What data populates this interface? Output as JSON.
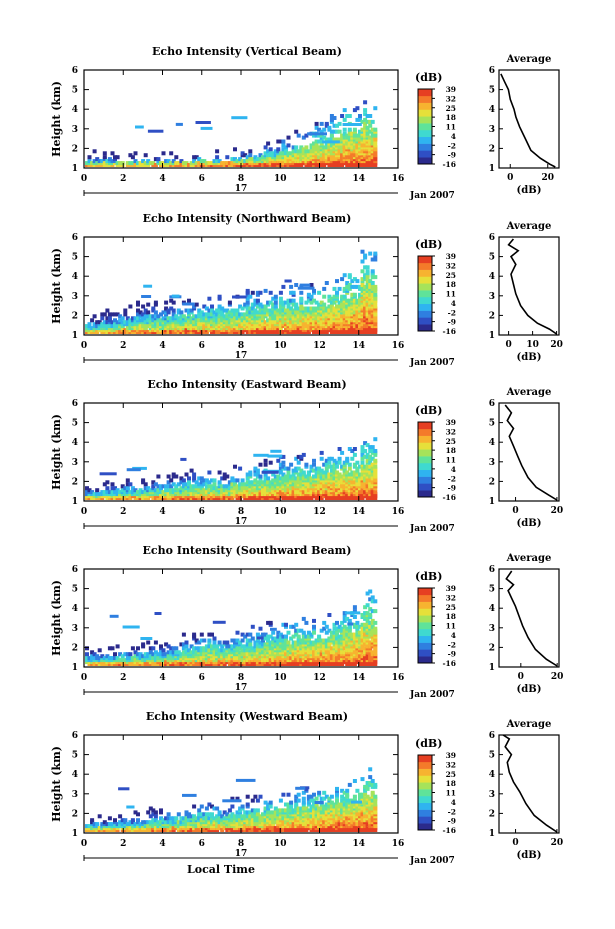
{
  "colors": {
    "palette": [
      "#2b2a8c",
      "#2f4fc4",
      "#2f7fe0",
      "#2fb4f0",
      "#3fd9d0",
      "#5fe39a",
      "#a6e35a",
      "#e6e03a",
      "#f7b330",
      "#f47a2a",
      "#e63f22"
    ],
    "line": "#000000",
    "background": "#ffffff"
  },
  "chart_data": [
    {
      "type": "heatmap",
      "title": "Echo Intensity (Vertical Beam)",
      "ylabel": "Height (km)",
      "xlabel": "",
      "date_label": "17",
      "month_label": "Jan 2007",
      "x_ticks": [
        "0",
        "2",
        "4",
        "6",
        "8",
        "10",
        "12",
        "14",
        "16"
      ],
      "xlim": [
        0,
        16
      ],
      "y_ticks": [
        "1",
        "2",
        "3",
        "4",
        "5",
        "6"
      ],
      "ylim": [
        1,
        6
      ],
      "colorbar": {
        "unit": "(dB)",
        "ticks": [
          "-16",
          "-9",
          "-2",
          "4",
          "11",
          "18",
          "25",
          "32",
          "39"
        ],
        "range": [
          -16,
          39
        ]
      },
      "top_heights": [
        1.4,
        1.4,
        1.3,
        1.3,
        1.3,
        1.3,
        1.3,
        1.4,
        1.4,
        1.5,
        1.6,
        1.9,
        2.1,
        2.4,
        2.8,
        3.2,
        3.6,
        3.9
      ],
      "average_profile": {
        "title": "Average",
        "xlabel": "(dB)",
        "x_ticks": [
          "0",
          "20"
        ],
        "xlim": [
          -6,
          26
        ],
        "y_ticks": [
          "1",
          "2",
          "3",
          "4",
          "5",
          "6"
        ],
        "points": [
          [
            24,
            1.05
          ],
          [
            21,
            1.2
          ],
          [
            16,
            1.5
          ],
          [
            11,
            1.9
          ],
          [
            8,
            2.5
          ],
          [
            5,
            3.1
          ],
          [
            3,
            3.6
          ],
          [
            2,
            4.0
          ],
          [
            0,
            4.5
          ],
          [
            -1,
            5.0
          ],
          [
            -3,
            5.4
          ],
          [
            -5,
            5.8
          ]
        ]
      }
    },
    {
      "type": "heatmap",
      "title": "Echo Intensity (Northward Beam)",
      "ylabel": "Height (km)",
      "xlabel": "",
      "date_label": "17",
      "month_label": "Jan 2007",
      "x_ticks": [
        "0",
        "2",
        "4",
        "6",
        "8",
        "10",
        "12",
        "14",
        "16"
      ],
      "xlim": [
        0,
        16
      ],
      "y_ticks": [
        "1",
        "2",
        "3",
        "4",
        "5",
        "6"
      ],
      "ylim": [
        1,
        6
      ],
      "colorbar": {
        "unit": "(dB)",
        "ticks": [
          "-16",
          "-9",
          "-2",
          "4",
          "11",
          "18",
          "25",
          "32",
          "39"
        ],
        "range": [
          -16,
          39
        ]
      },
      "top_heights": [
        1.6,
        1.8,
        2.0,
        2.2,
        2.2,
        2.3,
        2.4,
        2.5,
        2.5,
        2.6,
        2.8,
        2.9,
        3.0,
        3.1,
        3.2,
        3.4,
        3.9,
        5.0
      ],
      "average_profile": {
        "title": "Average",
        "xlabel": "(dB)",
        "x_ticks": [
          "0",
          "10",
          "20"
        ],
        "xlim": [
          -4,
          21
        ],
        "y_ticks": [
          "1",
          "2",
          "3",
          "4",
          "5",
          "6"
        ],
        "points": [
          [
            20,
            1.05
          ],
          [
            17,
            1.3
          ],
          [
            12,
            1.6
          ],
          [
            8,
            2.0
          ],
          [
            5,
            2.5
          ],
          [
            3,
            3.1
          ],
          [
            2,
            3.6
          ],
          [
            1,
            4.1
          ],
          [
            3,
            4.6
          ],
          [
            1,
            5.0
          ],
          [
            4,
            5.3
          ],
          [
            0,
            5.6
          ],
          [
            2,
            5.9
          ]
        ]
      }
    },
    {
      "type": "heatmap",
      "title": "Echo Intensity (Eastward Beam)",
      "ylabel": "Height (km)",
      "xlabel": "",
      "date_label": "17",
      "month_label": "Jan 2007",
      "x_ticks": [
        "0",
        "2",
        "4",
        "6",
        "8",
        "10",
        "12",
        "14",
        "16"
      ],
      "xlim": [
        0,
        16
      ],
      "y_ticks": [
        "1",
        "2",
        "3",
        "4",
        "5",
        "6"
      ],
      "ylim": [
        1,
        6
      ],
      "colorbar": {
        "unit": "(dB)",
        "ticks": [
          "-16",
          "-9",
          "-2",
          "4",
          "11",
          "18",
          "25",
          "32",
          "39"
        ],
        "range": [
          -16,
          39
        ]
      },
      "top_heights": [
        1.5,
        1.6,
        1.7,
        1.7,
        1.8,
        1.9,
        2.1,
        2.2,
        2.0,
        2.3,
        2.5,
        2.6,
        2.8,
        2.9,
        3.0,
        3.2,
        3.4,
        3.8
      ],
      "average_profile": {
        "title": "Average",
        "xlabel": "(dB)",
        "x_ticks": [
          "0",
          "20"
        ],
        "xlim": [
          -8,
          21
        ],
        "y_ticks": [
          "1",
          "2",
          "3",
          "4",
          "5",
          "6"
        ],
        "points": [
          [
            20,
            1.05
          ],
          [
            16,
            1.3
          ],
          [
            10,
            1.7
          ],
          [
            6,
            2.2
          ],
          [
            3,
            2.8
          ],
          [
            1,
            3.3
          ],
          [
            -1,
            3.8
          ],
          [
            -3,
            4.3
          ],
          [
            -1,
            4.7
          ],
          [
            -4,
            5.1
          ],
          [
            -2,
            5.5
          ],
          [
            -5,
            5.9
          ]
        ]
      }
    },
    {
      "type": "heatmap",
      "title": "Echo Intensity (Southward Beam)",
      "ylabel": "Height (km)",
      "xlabel": "",
      "date_label": "17",
      "month_label": "Jan 2007",
      "x_ticks": [
        "0",
        "2",
        "4",
        "6",
        "8",
        "10",
        "12",
        "14",
        "16"
      ],
      "xlim": [
        0,
        16
      ],
      "y_ticks": [
        "1",
        "2",
        "3",
        "4",
        "5",
        "6"
      ],
      "ylim": [
        1,
        6
      ],
      "colorbar": {
        "unit": "(dB)",
        "ticks": [
          "-16",
          "-9",
          "-2",
          "4",
          "11",
          "18",
          "25",
          "32",
          "39"
        ],
        "range": [
          -16,
          39
        ]
      },
      "top_heights": [
        1.6,
        1.6,
        1.7,
        1.8,
        1.8,
        2.0,
        2.2,
        2.4,
        2.3,
        2.4,
        2.6,
        2.8,
        2.9,
        3.0,
        3.1,
        3.3,
        3.6,
        4.4
      ],
      "average_profile": {
        "title": "Average",
        "xlabel": "(dB)",
        "x_ticks": [
          "0",
          "20"
        ],
        "xlim": [
          -12,
          21
        ],
        "y_ticks": [
          "1",
          "2",
          "3",
          "4",
          "5",
          "6"
        ],
        "points": [
          [
            20,
            1.05
          ],
          [
            14,
            1.4
          ],
          [
            8,
            1.9
          ],
          [
            4,
            2.5
          ],
          [
            1,
            3.1
          ],
          [
            -1,
            3.6
          ],
          [
            -3,
            4.1
          ],
          [
            -5,
            4.5
          ],
          [
            -7,
            4.9
          ],
          [
            -4,
            5.2
          ],
          [
            -8,
            5.5
          ],
          [
            -5,
            5.9
          ]
        ]
      }
    },
    {
      "type": "heatmap",
      "title": "Echo Intensity (Westward Beam)",
      "ylabel": "Height (km)",
      "xlabel": "Local Time",
      "date_label": "17",
      "month_label": "Jan 2007",
      "x_ticks": [
        "0",
        "2",
        "4",
        "6",
        "8",
        "10",
        "12",
        "14",
        "16"
      ],
      "xlim": [
        0,
        16
      ],
      "y_ticks": [
        "1",
        "2",
        "3",
        "4",
        "5",
        "6"
      ],
      "ylim": [
        1,
        6
      ],
      "colorbar": {
        "unit": "(dB)",
        "ticks": [
          "-16",
          "-9",
          "-2",
          "4",
          "11",
          "18",
          "25",
          "32",
          "39"
        ],
        "range": [
          -16,
          39
        ]
      },
      "top_heights": [
        1.5,
        1.5,
        1.6,
        1.7,
        1.8,
        1.9,
        2.0,
        2.2,
        2.1,
        2.3,
        2.4,
        2.6,
        2.7,
        2.8,
        3.0,
        3.1,
        3.3,
        3.8
      ],
      "average_profile": {
        "title": "Average",
        "xlabel": "(dB)",
        "x_ticks": [
          "0",
          "20"
        ],
        "xlim": [
          -8,
          21
        ],
        "y_ticks": [
          "1",
          "2",
          "3",
          "4",
          "5",
          "6"
        ],
        "points": [
          [
            20,
            1.05
          ],
          [
            15,
            1.4
          ],
          [
            9,
            1.9
          ],
          [
            5,
            2.5
          ],
          [
            2,
            3.1
          ],
          [
            -1,
            3.6
          ],
          [
            -3,
            4.1
          ],
          [
            -4,
            4.6
          ],
          [
            -2,
            5.0
          ],
          [
            -5,
            5.4
          ],
          [
            -3,
            5.8
          ],
          [
            -6,
            6.0
          ]
        ]
      }
    }
  ]
}
